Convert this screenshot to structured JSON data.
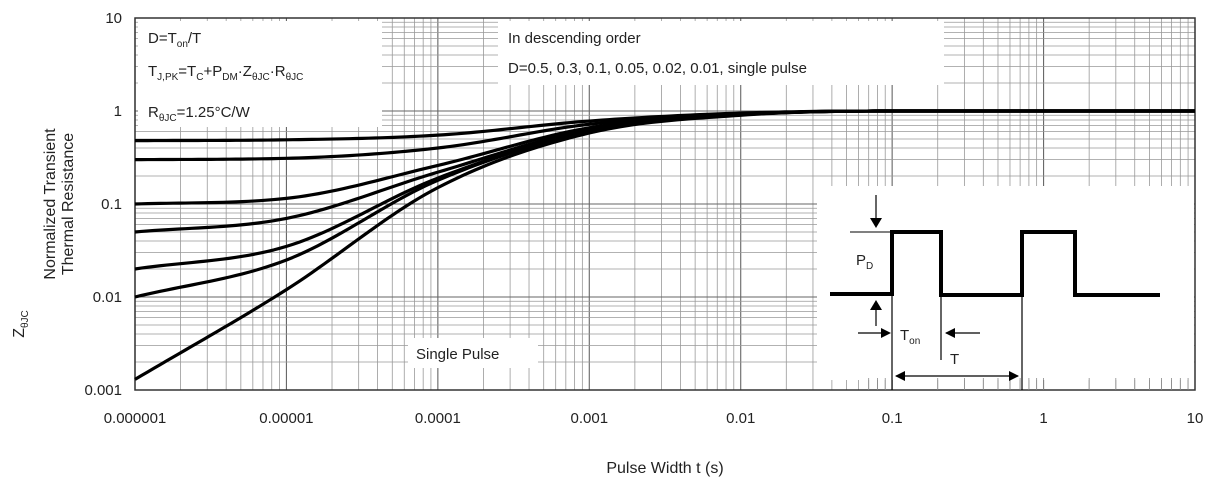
{
  "chart_data": {
    "type": "line",
    "title": "",
    "xlabel": "Pulse Width t (s)",
    "ylabel_line1": "Normalized Transient",
    "ylabel_line2": "Thermal Resistance",
    "ylabel_symbol": "Z",
    "ylabel_symbol_sub": "θJC",
    "xscale": "log",
    "yscale": "log",
    "xlim": [
      1e-06,
      10
    ],
    "ylim": [
      0.001,
      10
    ],
    "grid": true,
    "x_ticks": [
      "0.000001",
      "0.00001",
      "0.0001",
      "0.001",
      "0.01",
      "0.1",
      "1",
      "10"
    ],
    "y_ticks": [
      "0.001",
      "0.01",
      "0.1",
      "1",
      "10"
    ],
    "x": [
      1e-06,
      1e-05,
      0.0001,
      0.001,
      0.01,
      0.1,
      1,
      10
    ],
    "series": [
      {
        "values": [
          0.48,
          0.49,
          0.55,
          0.78,
          0.95,
          1.0,
          1.0,
          1.0
        ]
      },
      {
        "values": [
          0.3,
          0.31,
          0.4,
          0.72,
          0.93,
          1.0,
          1.0,
          1.0
        ]
      },
      {
        "values": [
          0.1,
          0.115,
          0.26,
          0.66,
          0.92,
          1.0,
          1.0,
          1.0
        ]
      },
      {
        "values": [
          0.05,
          0.07,
          0.22,
          0.63,
          0.91,
          1.0,
          1.0,
          1.0
        ]
      },
      {
        "values": [
          0.02,
          0.035,
          0.19,
          0.61,
          0.91,
          1.0,
          1.0,
          1.0
        ]
      },
      {
        "values": [
          0.01,
          0.025,
          0.18,
          0.6,
          0.91,
          1.0,
          1.0,
          1.0
        ]
      },
      {
        "values": [
          0.0013,
          0.012,
          0.15,
          0.58,
          0.9,
          1.0,
          1.0,
          1.0
        ]
      }
    ],
    "annotations": {
      "note_box": {
        "line1_base": "D=T",
        "line1_sub": "on",
        "line1_tail": "/T",
        "line2": [
          {
            "t": "T",
            "sub": "J,PK"
          },
          {
            "t": "=T",
            "sub": "C"
          },
          {
            "t": "+P",
            "sub": "DM"
          },
          {
            "t": "·Z",
            "sub": "θJC"
          },
          {
            "t": "·R",
            "sub": "θJC"
          }
        ],
        "line3_base": "R",
        "line3_sub": "θJC",
        "line3_tail": "=1.25°C/W"
      },
      "order_box": {
        "line1": "In descending order",
        "line2": "D=0.5, 0.3, 0.1, 0.05, 0.02, 0.01, single pulse"
      },
      "single_pulse": "Single Pulse",
      "inset": {
        "pd_base": "P",
        "pd_sub": "D",
        "ton_base": "T",
        "ton_sub": "on",
        "t_label": "T"
      }
    }
  }
}
